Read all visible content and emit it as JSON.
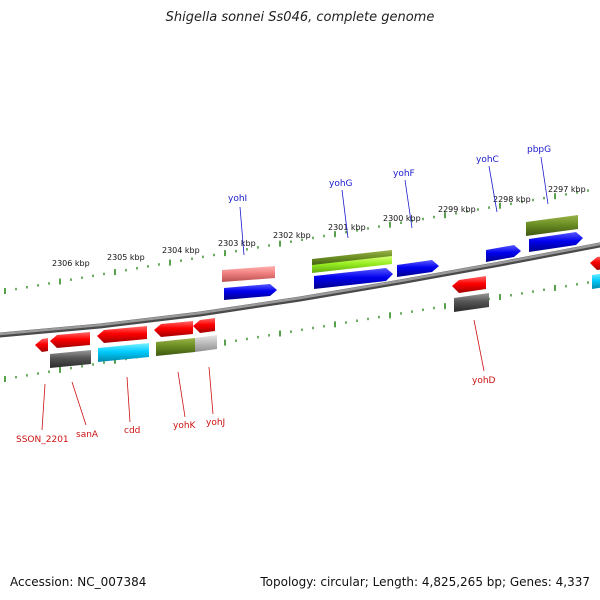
{
  "title": "Shigella sonnei Ss046, complete genome",
  "footer": {
    "accession": "Accession: NC_007384",
    "summary": "Topology: circular; Length: 4,825,265 bp; Genes: 4,337"
  },
  "colors": {
    "backbone": "#8c8c8c",
    "tick": "#2e8b20",
    "label_top": "#1a1acc",
    "label_bottom": "#cc1111"
  },
  "tick_labels": [
    "2306 kbp",
    "2305 kbp",
    "2304 kbp",
    "2303 kbp",
    "2302 kbp",
    "2301 kbp",
    "2300 kbp",
    "2299 kbp",
    "2298 kbp",
    "2297 kbp"
  ],
  "top_gene_labels": [
    "yohI",
    "yohG",
    "yohF",
    "yohC",
    "pbpG"
  ],
  "bottom_gene_labels": [
    "SSON_2201",
    "sanA",
    "cdd",
    "yohK",
    "yohJ",
    "yohD"
  ]
}
